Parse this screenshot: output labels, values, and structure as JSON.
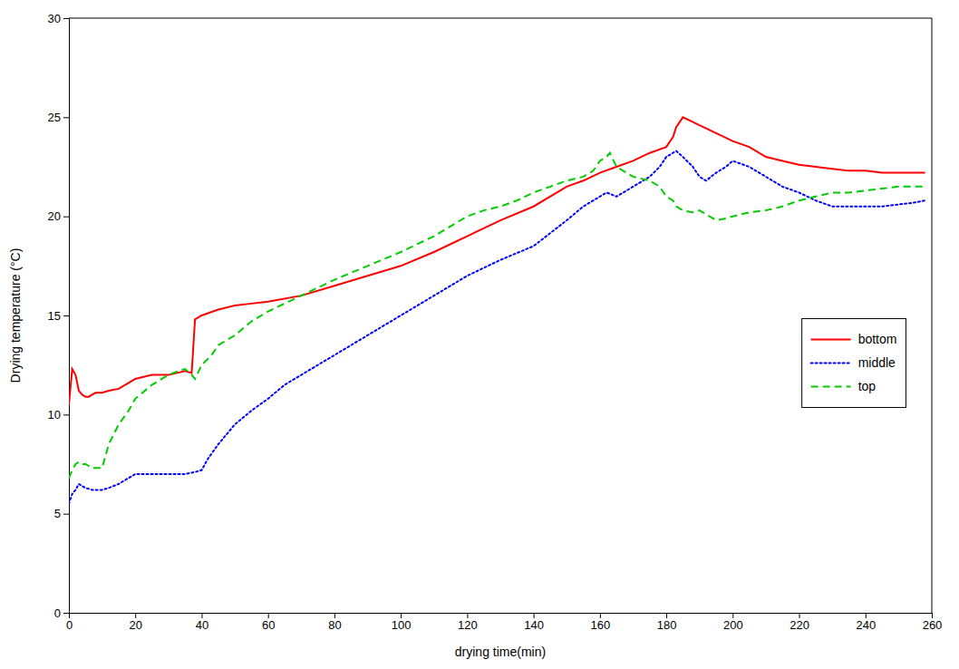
{
  "chart_data": {
    "type": "line",
    "xlabel": "drying time(min)",
    "ylabel": "Drying temperature (°C)",
    "xlim": [
      0,
      260
    ],
    "ylim": [
      0,
      30
    ],
    "xticks": [
      0,
      20,
      40,
      60,
      80,
      100,
      120,
      140,
      160,
      180,
      200,
      220,
      240,
      260
    ],
    "yticks": [
      0,
      5,
      10,
      15,
      20,
      25,
      30
    ],
    "grid": false,
    "legend": "right",
    "series": [
      {
        "name": "bottom",
        "color": "#ff0000",
        "line_style": "solid",
        "x": [
          0,
          1,
          2,
          3,
          4,
          5,
          6,
          7,
          8,
          9,
          10,
          12,
          15,
          18,
          20,
          25,
          30,
          35,
          37,
          38,
          40,
          45,
          50,
          55,
          60,
          70,
          80,
          90,
          100,
          110,
          120,
          130,
          140,
          150,
          155,
          160,
          165,
          170,
          175,
          180,
          182,
          183,
          185,
          190,
          195,
          200,
          205,
          210,
          215,
          220,
          225,
          230,
          235,
          240,
          245,
          250,
          255,
          258
        ],
        "values": [
          10.5,
          12.3,
          12.0,
          11.2,
          11.0,
          10.9,
          10.9,
          11.0,
          11.1,
          11.1,
          11.1,
          11.2,
          11.3,
          11.6,
          11.8,
          12.0,
          12.0,
          12.2,
          12.1,
          14.8,
          15.0,
          15.3,
          15.5,
          15.6,
          15.7,
          16.0,
          16.5,
          17.0,
          17.5,
          18.2,
          19.0,
          19.8,
          20.5,
          21.5,
          21.8,
          22.2,
          22.5,
          22.8,
          23.2,
          23.5,
          24.0,
          24.5,
          25.0,
          24.6,
          24.2,
          23.8,
          23.5,
          23.0,
          22.8,
          22.6,
          22.5,
          22.4,
          22.3,
          22.3,
          22.2,
          22.2,
          22.2,
          22.2
        ]
      },
      {
        "name": "middle",
        "color": "#0000ff",
        "line_style": "dotted",
        "x": [
          0,
          1,
          2,
          3,
          5,
          7,
          10,
          12,
          15,
          18,
          20,
          25,
          30,
          35,
          38,
          40,
          42,
          45,
          50,
          55,
          60,
          65,
          70,
          75,
          80,
          90,
          100,
          110,
          120,
          130,
          140,
          150,
          155,
          160,
          162,
          165,
          170,
          175,
          178,
          180,
          182,
          183,
          185,
          188,
          190,
          192,
          195,
          198,
          200,
          205,
          210,
          215,
          220,
          225,
          230,
          235,
          240,
          245,
          250,
          255,
          258
        ],
        "values": [
          5.5,
          6.0,
          6.2,
          6.5,
          6.3,
          6.2,
          6.2,
          6.3,
          6.5,
          6.8,
          7.0,
          7.0,
          7.0,
          7.0,
          7.1,
          7.2,
          7.8,
          8.5,
          9.5,
          10.2,
          10.8,
          11.5,
          12.0,
          12.5,
          13.0,
          14.0,
          15.0,
          16.0,
          17.0,
          17.8,
          18.5,
          19.8,
          20.5,
          21.0,
          21.2,
          21.0,
          21.5,
          22.0,
          22.5,
          23.0,
          23.2,
          23.3,
          23.0,
          22.5,
          22.0,
          21.8,
          22.2,
          22.5,
          22.8,
          22.5,
          22.0,
          21.5,
          21.2,
          20.8,
          20.5,
          20.5,
          20.5,
          20.5,
          20.6,
          20.7,
          20.8
        ]
      },
      {
        "name": "top",
        "color": "#00cc00",
        "line_style": "dashed",
        "x": [
          0,
          1,
          2,
          3,
          4,
          5,
          7,
          10,
          12,
          15,
          18,
          20,
          25,
          30,
          33,
          35,
          37,
          38,
          40,
          43,
          45,
          50,
          55,
          60,
          70,
          80,
          90,
          100,
          110,
          120,
          125,
          130,
          135,
          140,
          145,
          150,
          155,
          158,
          160,
          162,
          163,
          165,
          170,
          175,
          178,
          180,
          182,
          183,
          185,
          188,
          190,
          193,
          195,
          198,
          200,
          205,
          210,
          215,
          220,
          225,
          230,
          235,
          240,
          245,
          250,
          255,
          258
        ],
        "values": [
          6.8,
          7.2,
          7.5,
          7.6,
          7.5,
          7.5,
          7.3,
          7.3,
          8.5,
          9.5,
          10.2,
          10.8,
          11.5,
          12.0,
          12.2,
          12.3,
          12.0,
          11.8,
          12.5,
          13.0,
          13.5,
          14.0,
          14.7,
          15.2,
          16.0,
          16.8,
          17.5,
          18.2,
          19.0,
          20.0,
          20.3,
          20.5,
          20.8,
          21.2,
          21.5,
          21.8,
          22.0,
          22.3,
          22.8,
          23.0,
          23.2,
          22.5,
          22.0,
          21.8,
          21.5,
          21.0,
          20.8,
          20.5,
          20.3,
          20.2,
          20.3,
          20.0,
          19.8,
          19.9,
          20.0,
          20.2,
          20.3,
          20.5,
          20.8,
          21.0,
          21.2,
          21.2,
          21.3,
          21.4,
          21.5,
          21.5,
          21.5
        ]
      }
    ]
  }
}
